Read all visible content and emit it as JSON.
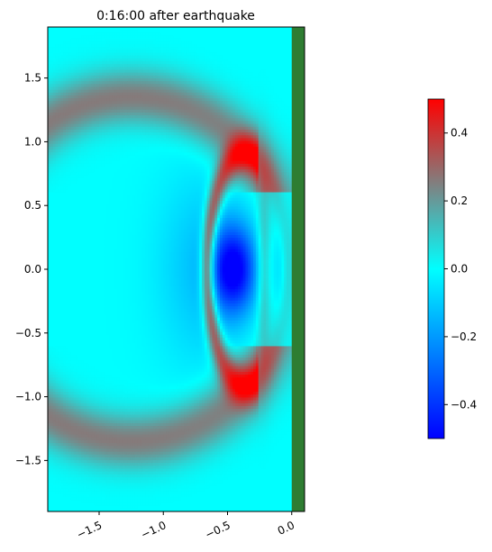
{
  "chart_data": {
    "type": "heatmap",
    "title": "0:16:00 after earthquake",
    "xlabel": "",
    "ylabel": "",
    "xlim": [
      -1.9,
      0.1
    ],
    "ylim": [
      -1.9,
      1.9
    ],
    "x_ticks": [
      -1.5,
      -1.0,
      -0.5,
      0.0
    ],
    "x_tick_labels": [
      "−1.5",
      "−1.0",
      "−0.5",
      "0.0"
    ],
    "x_tick_rotation_deg": -25,
    "y_ticks": [
      1.5,
      1.0,
      0.5,
      0.0,
      -0.5,
      -1.0,
      -1.5
    ],
    "y_tick_labels": [
      "1.5",
      "1.0",
      "0.5",
      "0.0",
      "−0.5",
      "−1.0",
      "−1.5"
    ],
    "land_boundary_x": 0.0,
    "land_color": "#2e7d32",
    "colorbar": {
      "vmin": -0.5,
      "vmax": 0.5,
      "ticks": [
        0.4,
        0.2,
        0.0,
        -0.2,
        -0.4
      ],
      "tick_labels": [
        "0.4",
        "0.2",
        "0.0",
        "−0.2",
        "−0.4"
      ],
      "colors": [
        {
          "value": -0.5,
          "color": "#0000ff"
        },
        {
          "value": -0.25,
          "color": "#0080ff"
        },
        {
          "value": 0.0,
          "color": "#00ffff"
        },
        {
          "value": 0.25,
          "color": "#808080"
        },
        {
          "value": 0.5,
          "color": "#ff0000"
        }
      ]
    },
    "wave_field": {
      "front_center": [
        -0.35,
        0.0
      ],
      "front_radius": 0.92,
      "front_peak_value": 0.45,
      "trough_center": [
        -0.45,
        0.0
      ],
      "trough_value": -0.5,
      "outer_ring_center": [
        -1.25,
        0.0
      ],
      "outer_ring_radius": 1.35,
      "outer_ring_value": 0.26,
      "reflection_x": -0.22,
      "reflection_value": 0.15
    }
  }
}
